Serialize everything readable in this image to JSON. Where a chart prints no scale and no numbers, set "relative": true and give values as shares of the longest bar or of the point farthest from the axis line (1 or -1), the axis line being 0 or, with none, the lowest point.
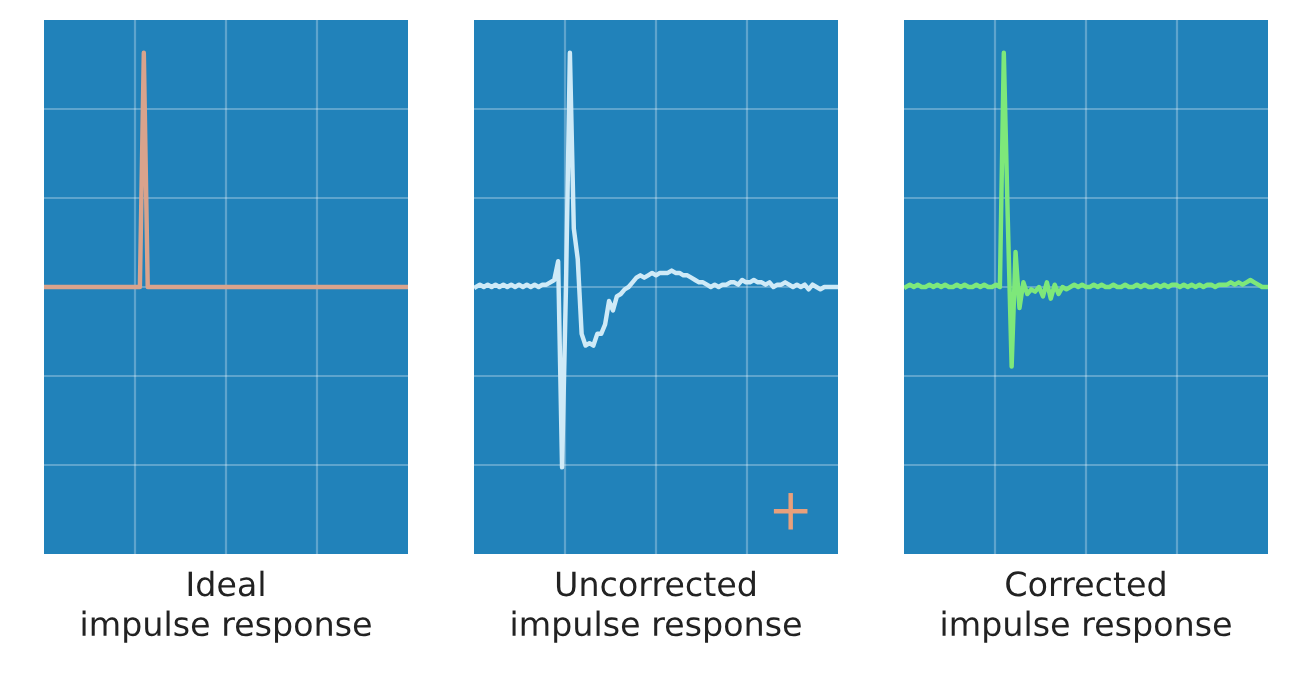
{
  "chart_data": [
    {
      "type": "line",
      "xlabel": "Ideal\nimpulse response",
      "relative": true,
      "grid": true,
      "tick_labels": false,
      "categories": [
        null,
        null,
        null,
        null,
        null,
        null,
        null,
        null,
        null,
        null,
        null,
        null,
        null,
        null,
        null,
        null,
        null,
        null,
        null,
        null,
        null,
        null,
        null,
        null,
        null,
        null,
        null,
        null,
        null,
        null,
        null,
        null,
        null,
        null,
        null,
        null,
        null,
        null,
        null,
        null,
        null,
        null,
        null,
        null,
        null,
        null,
        null,
        null,
        null,
        null,
        null,
        null,
        null,
        null,
        null,
        null,
        null,
        null,
        null,
        null,
        null,
        null,
        null,
        null,
        null,
        null,
        null,
        null,
        null,
        null,
        null,
        null,
        null,
        null,
        null,
        null,
        null,
        null,
        null,
        null,
        null,
        null,
        null,
        null,
        null,
        null,
        null,
        null,
        null,
        null,
        null,
        null,
        null
      ],
      "series": [
        {
          "color": "#d9a38c",
          "values": [
            0,
            0,
            0,
            0,
            0,
            0,
            0,
            0,
            0,
            0,
            0,
            0,
            0,
            0,
            0,
            0,
            0,
            0,
            0,
            0,
            0,
            0,
            0,
            0,
            0,
            1,
            0,
            0,
            0,
            0,
            0,
            0,
            0,
            0,
            0,
            0,
            0,
            0,
            0,
            0,
            0,
            0,
            0,
            0,
            0,
            0,
            0,
            0,
            0,
            0,
            0,
            0,
            0,
            0,
            0,
            0,
            0,
            0,
            0,
            0,
            0,
            0,
            0,
            0,
            0,
            0,
            0,
            0,
            0,
            0,
            0,
            0,
            0,
            0,
            0,
            0,
            0,
            0,
            0,
            0,
            0,
            0,
            0,
            0,
            0,
            0,
            0,
            0,
            0,
            0,
            0,
            0,
            0
          ]
        }
      ]
    },
    {
      "type": "line",
      "xlabel": "Uncorrected\nimpulse response",
      "relative": true,
      "grid": true,
      "tick_labels": false,
      "categories": [
        null,
        null,
        null,
        null,
        null,
        null,
        null,
        null,
        null,
        null,
        null,
        null,
        null,
        null,
        null,
        null,
        null,
        null,
        null,
        null,
        null,
        null,
        null,
        null,
        null,
        null,
        null,
        null,
        null,
        null,
        null,
        null,
        null,
        null,
        null,
        null,
        null,
        null,
        null,
        null,
        null,
        null,
        null,
        null,
        null,
        null,
        null,
        null,
        null,
        null,
        null,
        null,
        null,
        null,
        null,
        null,
        null,
        null,
        null,
        null,
        null,
        null,
        null,
        null,
        null,
        null,
        null,
        null,
        null,
        null,
        null,
        null,
        null,
        null,
        null,
        null,
        null,
        null,
        null,
        null,
        null,
        null,
        null,
        null,
        null,
        null,
        null,
        null,
        null,
        null,
        null,
        null,
        null
      ],
      "series": [
        {
          "color": "#cfeaf7",
          "values": [
            0,
            0.01,
            0,
            0.01,
            0,
            0.01,
            0,
            0.01,
            0,
            0.01,
            0,
            0.01,
            0,
            0.01,
            0,
            0.01,
            0,
            0.01,
            0.01,
            0.02,
            0.03,
            0.11,
            -0.77,
            0.0,
            1.0,
            0.25,
            0.12,
            -0.2,
            -0.25,
            -0.24,
            -0.25,
            -0.2,
            -0.2,
            -0.16,
            -0.06,
            -0.1,
            -0.04,
            -0.03,
            -0.01,
            0.0,
            0.02,
            0.04,
            0.05,
            0.04,
            0.05,
            0.06,
            0.05,
            0.06,
            0.06,
            0.06,
            0.07,
            0.06,
            0.06,
            0.05,
            0.05,
            0.04,
            0.03,
            0.02,
            0.02,
            0.01,
            0.0,
            0.01,
            0.0,
            0.01,
            0.01,
            0.02,
            0.02,
            0.01,
            0.03,
            0.02,
            0.02,
            0.03,
            0.02,
            0.02,
            0.01,
            0.02,
            0.0,
            0.01,
            0.01,
            0.02,
            0.01,
            0.0,
            0.01,
            0.0,
            0.01,
            -0.01,
            0.01,
            0.0,
            -0.01,
            0.0,
            0.0,
            0.0,
            0.0
          ]
        }
      ]
    },
    {
      "type": "line",
      "xlabel": "Corrected\nimpulse response",
      "relative": true,
      "grid": true,
      "tick_labels": false,
      "categories": [
        null,
        null,
        null,
        null,
        null,
        null,
        null,
        null,
        null,
        null,
        null,
        null,
        null,
        null,
        null,
        null,
        null,
        null,
        null,
        null,
        null,
        null,
        null,
        null,
        null,
        null,
        null,
        null,
        null,
        null,
        null,
        null,
        null,
        null,
        null,
        null,
        null,
        null,
        null,
        null,
        null,
        null,
        null,
        null,
        null,
        null,
        null,
        null,
        null,
        null,
        null,
        null,
        null,
        null,
        null,
        null,
        null,
        null,
        null,
        null,
        null,
        null,
        null,
        null,
        null,
        null,
        null,
        null,
        null,
        null,
        null,
        null,
        null,
        null,
        null,
        null,
        null,
        null,
        null,
        null,
        null,
        null,
        null,
        null,
        null,
        null,
        null,
        null,
        null,
        null,
        null,
        null,
        null
      ],
      "series": [
        {
          "color": "#7ee87a",
          "values": [
            0,
            0.01,
            0,
            0.01,
            0,
            0,
            0.01,
            0,
            0.01,
            0,
            0.01,
            0,
            0,
            0.01,
            0,
            0.01,
            0,
            0,
            0.01,
            0,
            0.01,
            0,
            0,
            0.01,
            0.0,
            1.0,
            0.3,
            -0.34,
            0.15,
            -0.09,
            0.02,
            -0.03,
            -0.01,
            -0.02,
            0.0,
            -0.04,
            0.02,
            -0.05,
            0.01,
            -0.03,
            0.0,
            -0.01,
            0.0,
            0.01,
            0,
            0.01,
            0,
            0,
            0.01,
            0,
            0.01,
            0,
            0,
            0.01,
            0,
            0,
            0.01,
            0,
            0,
            0.01,
            0,
            0.01,
            0,
            0,
            0.01,
            0,
            0.01,
            0,
            0.01,
            0.01,
            0,
            0.01,
            0,
            0.01,
            0,
            0.01,
            0,
            0.01,
            0.01,
            0,
            0.01,
            0.01,
            0.01,
            0.02,
            0.01,
            0.02,
            0.01,
            0.02,
            0.03,
            0.02,
            0.01,
            0.0,
            0.0
          ]
        }
      ]
    }
  ]
}
